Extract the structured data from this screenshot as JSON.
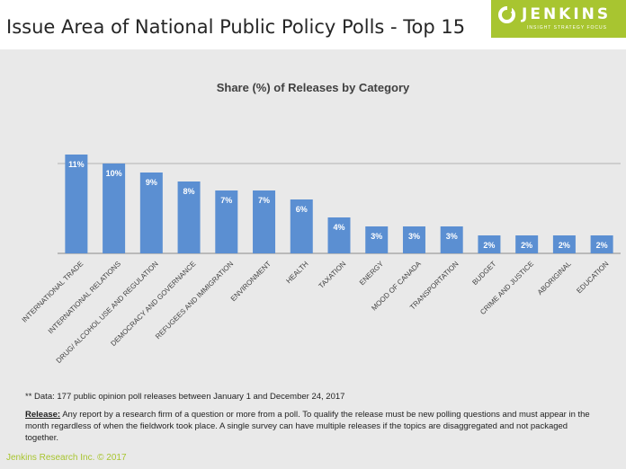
{
  "page": {
    "title": "Issue Area of National Public Policy Polls  - Top 15",
    "footnote": "** Data: 177 public opinion poll releases between January 1 and December 24, 2017",
    "release_label": "Release:",
    "release_text": " Any report by a research firm of a question or more from a poll. To qualify the release must be new polling questions and must appear in the month regardless of when the fieldwork took place. A single survey can have multiple releases if the topics are disaggregated and not packaged together.",
    "copyright": "Jenkins Research Inc. © 2017"
  },
  "logo": {
    "name": "JENKINS",
    "tagline": "INSIGHT  STRATEGY  FOCUS",
    "color": "#a8c530"
  },
  "chart_data": {
    "type": "bar",
    "title": "Share (%) of Releases by Category",
    "categories": [
      "INTERNATIONAL TRADE",
      "INTERNATIONAL RELATIONS",
      "DRUG/ ALCOHOL USE AND REGULATION",
      "DEMOCRACY AND GOVERNANCE",
      "REFUGEES AND IMMIGRATION",
      "ENVIRONMENT",
      "HEALTH",
      "TAXATION",
      "ENERGY",
      "MOOD OF CANADA",
      "TRANSPORTATION",
      "BUDGET",
      "CRIME AND JUSTICE",
      "ABORIGINAL",
      "EDUCATION"
    ],
    "values": [
      11,
      10,
      9,
      8,
      7,
      7,
      6,
      4,
      3,
      3,
      3,
      2,
      2,
      2,
      2
    ],
    "data_labels": [
      "11%",
      "10%",
      "9%",
      "8%",
      "7%",
      "7%",
      "6%",
      "4%",
      "3%",
      "3%",
      "3%",
      "2%",
      "2%",
      "2%",
      "2%"
    ],
    "ylim": [
      0,
      12
    ],
    "grid": true,
    "legend": "none",
    "bar_color": "#5b8fd2",
    "xlabel": "",
    "ylabel": ""
  }
}
